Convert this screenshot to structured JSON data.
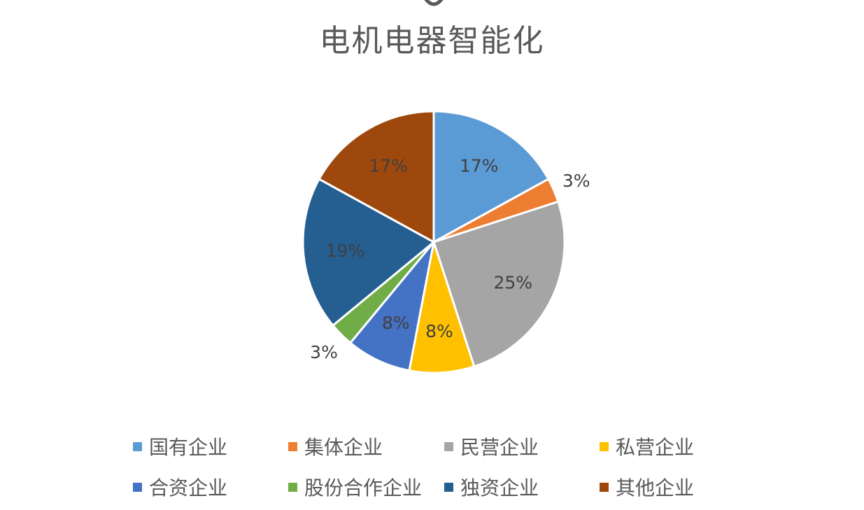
{
  "chart_data": {
    "type": "pie",
    "title": "电机电器智能化",
    "categories": [
      "国有企业",
      "集体企业",
      "民营企业",
      "私营企业",
      "合资企业",
      "股份合作企业",
      "独资企业",
      "其他企业"
    ],
    "values": [
      17,
      3,
      25,
      8,
      8,
      3,
      19,
      17
    ],
    "labels": [
      "17%",
      "3%",
      "25%",
      "8%",
      "8%",
      "3%",
      "19%",
      "17%"
    ],
    "colors": [
      "#5B9BD5",
      "#ED7D31",
      "#A5A5A5",
      "#FFC000",
      "#4472C4",
      "#70AD47",
      "#255E91",
      "#9E480E"
    ],
    "legend_position": "bottom"
  }
}
